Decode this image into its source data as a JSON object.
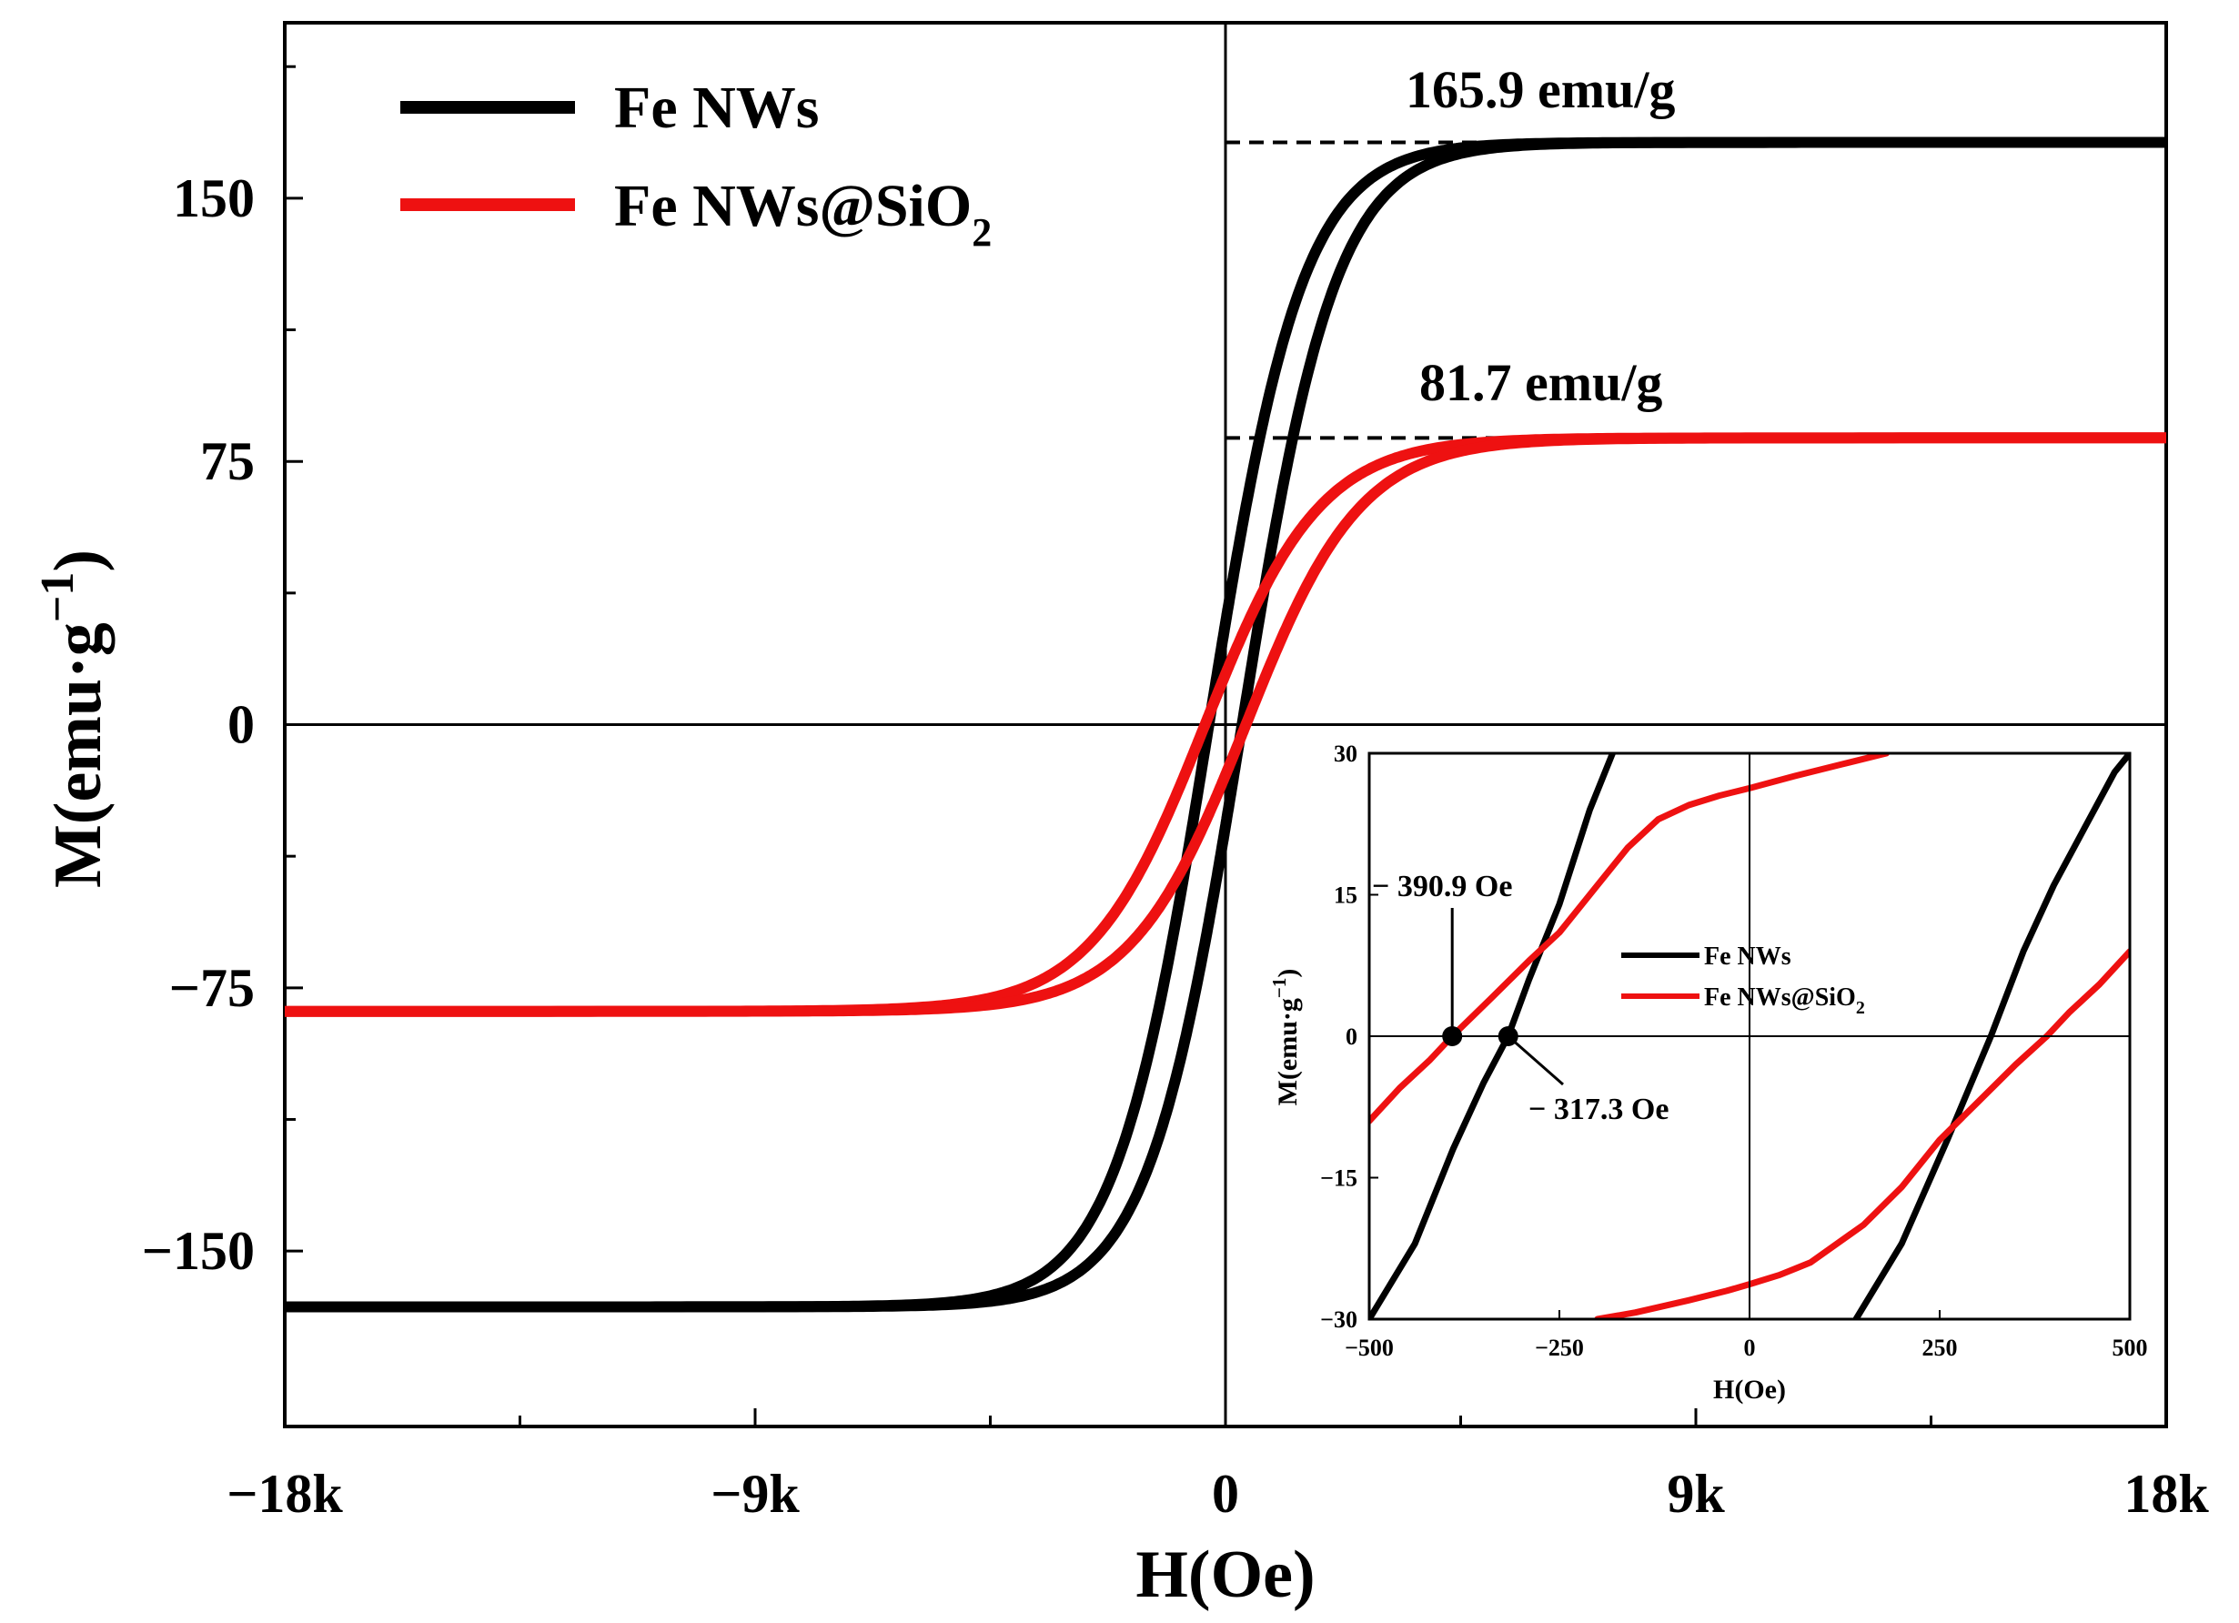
{
  "chart_data": [
    {
      "type": "line",
      "xlabel": "H(Oe)",
      "ylabel_main": "M(emu·g",
      "ylabel_sup": "−1",
      "ylabel_close": ")",
      "xlim": [
        -18000,
        18000
      ],
      "ylim": [
        -200,
        200
      ],
      "xticks": [
        {
          "value": -18000,
          "label": "−18k"
        },
        {
          "value": -9000,
          "label": "−9k"
        },
        {
          "value": 0,
          "label": "0"
        },
        {
          "value": 9000,
          "label": "9k"
        },
        {
          "value": 18000,
          "label": "18k"
        }
      ],
      "yticks": [
        {
          "value": 150,
          "label": "150"
        },
        {
          "value": 75,
          "label": "75"
        },
        {
          "value": 0,
          "label": "0"
        },
        {
          "value": -75,
          "label": "−75"
        },
        {
          "value": -150,
          "label": "−150"
        }
      ],
      "legend": {
        "placement": "top-left",
        "entries": [
          {
            "text": "Fe NWs",
            "color": "#000000"
          },
          {
            "text": "Fe NWs@SiO",
            "subscript": "2",
            "color": "#ee1111"
          }
        ]
      },
      "annotations": [
        {
          "text": "165.9 emu/g",
          "y": 165.9
        },
        {
          "text": "81.7 emu/g",
          "y": 81.7
        }
      ],
      "series": [
        {
          "name": "Fe NWs",
          "color": "#000000",
          "Ms": 165.9,
          "Hc": 317.3,
          "H0": 1800
        },
        {
          "name": "Fe NWs@SiO2",
          "color": "#ee1111",
          "Ms": 81.7,
          "Hc": 390.9,
          "H0": 2200
        }
      ]
    },
    {
      "type": "line",
      "xlabel": "H(Oe)",
      "ylabel_main": "M(emu·g",
      "ylabel_sup": "−1",
      "ylabel_close": ")",
      "xlim": [
        -500,
        500
      ],
      "ylim": [
        -30,
        30
      ],
      "xticks": [
        {
          "value": -500,
          "label": "−500"
        },
        {
          "value": -250,
          "label": "−250"
        },
        {
          "value": 0,
          "label": "0"
        },
        {
          "value": 250,
          "label": "250"
        },
        {
          "value": 500,
          "label": "500"
        }
      ],
      "yticks": [
        {
          "value": 30,
          "label": "30"
        },
        {
          "value": 15,
          "label": "15"
        },
        {
          "value": 0,
          "label": "0"
        },
        {
          "value": -15,
          "label": "−15"
        },
        {
          "value": -30,
          "label": "−30"
        }
      ],
      "legend": {
        "placement": "center-right",
        "entries": [
          {
            "text": "Fe NWs",
            "color": "#000000"
          },
          {
            "text": "Fe NWs@SiO",
            "subscript": "2",
            "color": "#ee1111"
          }
        ]
      },
      "annotations": [
        {
          "text": "− 390.9 Oe",
          "x": -390.9,
          "y": 0
        },
        {
          "text": "− 317.3 Oe",
          "x": -317.3,
          "y": 0
        }
      ],
      "series": [
        {
          "name": "Fe NWs",
          "color": "#000000",
          "segments": [
            {
              "x": [
                -500,
                -440,
                -390,
                -350,
                -317.3,
                -290,
                -250,
                -210,
                -180
              ],
              "y": [
                -30,
                -22,
                -12,
                -5,
                0,
                6,
                14,
                24,
                30
              ]
            },
            {
              "x": [
                140,
                200,
                260,
                317.3,
                360,
                400,
                440,
                480,
                500
              ],
              "y": [
                -30,
                -22,
                -11,
                0,
                9,
                16,
                22,
                28,
                30
              ]
            }
          ]
        },
        {
          "name": "Fe NWs@SiO2",
          "color": "#ee1111",
          "segments": [
            {
              "x": [
                -500,
                -460,
                -420,
                -390.9,
                -340,
                -290,
                -250,
                -200,
                -160,
                -120,
                -80,
                -40,
                0,
                60,
                120,
                180
              ],
              "y": [
                -9,
                -5.5,
                -2.5,
                0,
                4,
                8,
                11,
                16,
                20,
                23,
                24.5,
                25.5,
                26.3,
                27.6,
                28.8,
                30
              ]
            },
            {
              "x": [
                -200,
                -150,
                -80,
                -30,
                0,
                40,
                80,
                150,
                200,
                250,
                300,
                350,
                390.9,
                420,
                460,
                500
              ],
              "y": [
                -30,
                -29.3,
                -28,
                -27,
                -26.3,
                -25.3,
                -24,
                -20,
                -16,
                -11,
                -7,
                -3,
                0,
                2.5,
                5.5,
                9
              ]
            }
          ]
        }
      ]
    }
  ]
}
